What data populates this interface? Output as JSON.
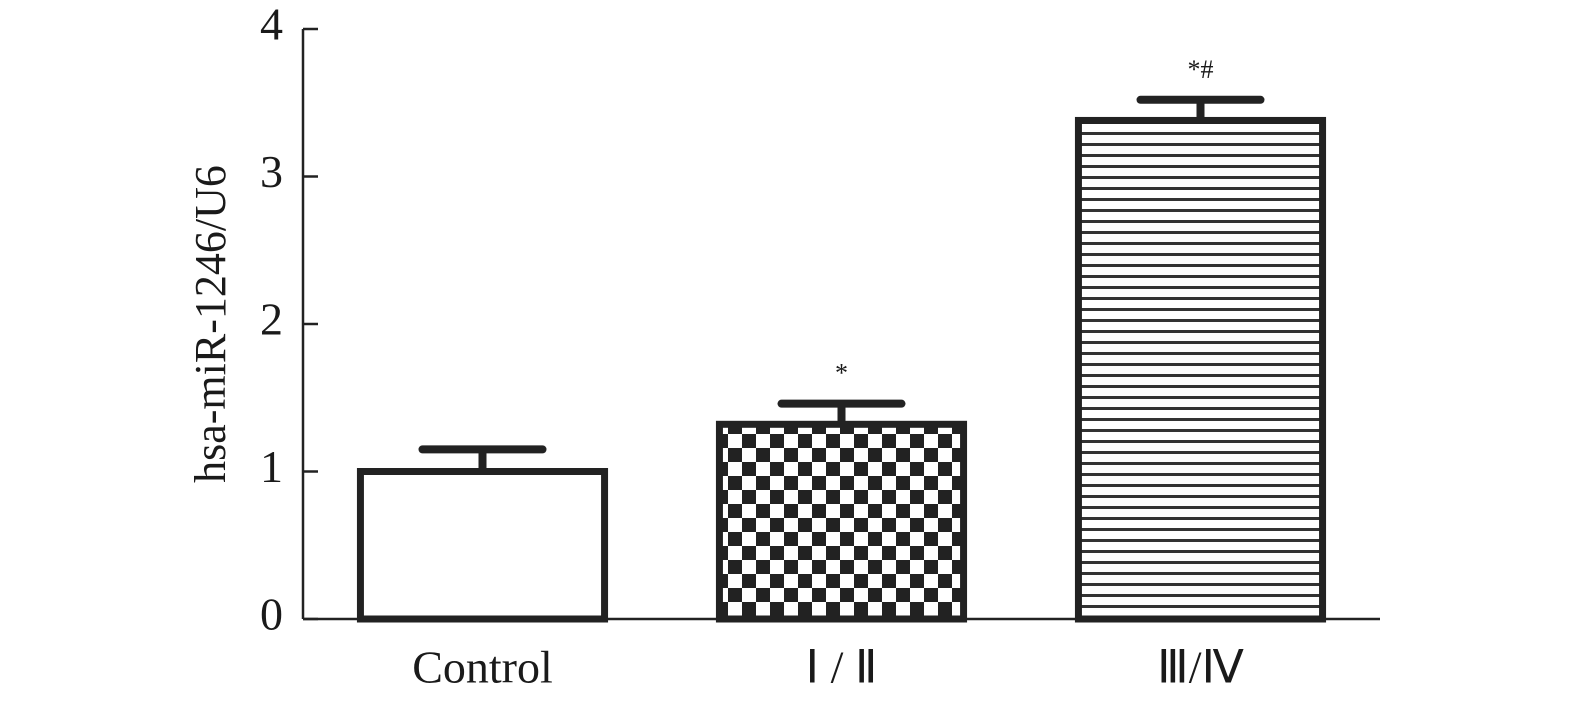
{
  "chart_data": {
    "type": "bar",
    "y_label": "hsa-miR-1246/U6",
    "categories": [
      "Control",
      "Ⅰ / Ⅱ",
      "Ⅲ/Ⅳ"
    ],
    "values": [
      1.0,
      1.32,
      3.38
    ],
    "errors": [
      0.15,
      0.14,
      0.14
    ],
    "annotations": [
      {
        "category": "Ⅰ / Ⅱ",
        "text": "*"
      },
      {
        "category": "Ⅲ/Ⅳ",
        "text": "*#"
      }
    ],
    "color": "#222222",
    "ylim": [
      0,
      4
    ],
    "yticks": [
      0,
      1,
      2,
      3,
      4
    ],
    "grid": false
  }
}
